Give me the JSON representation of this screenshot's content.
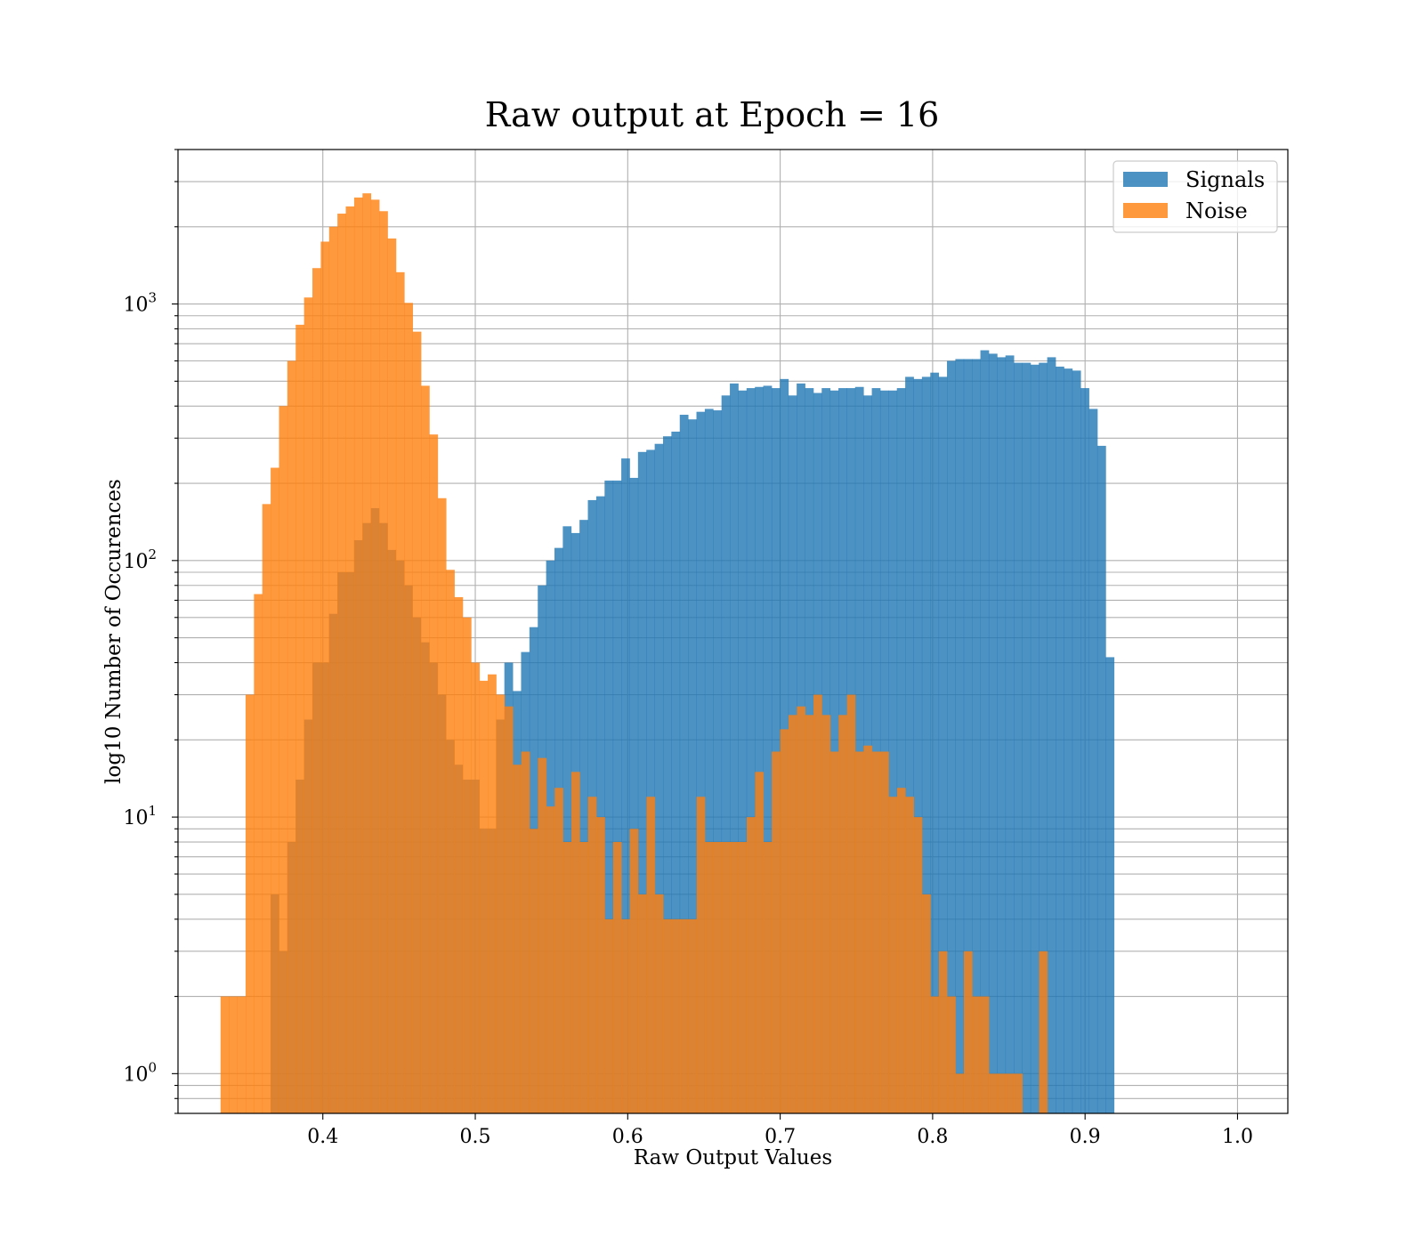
{
  "chart_data": {
    "type": "bar",
    "title": "Raw output at Epoch = 16",
    "xlabel": "Raw Output Values",
    "ylabel": "log10 Number of Occurences",
    "yscale": "log",
    "xlim": [
      0.305,
      1.033
    ],
    "ylim": [
      0.7,
      4000
    ],
    "xticks": [
      0.4,
      0.5,
      0.6,
      0.7,
      0.8,
      0.9,
      1.0
    ],
    "xtick_labels": [
      "0.4",
      "0.5",
      "0.6",
      "0.7",
      "0.8",
      "0.9",
      "1.0"
    ],
    "yticks": [
      1,
      10,
      100,
      1000
    ],
    "ytick_labels": [
      {
        "base": "10",
        "exp": "0"
      },
      {
        "base": "10",
        "exp": "1"
      },
      {
        "base": "10",
        "exp": "2"
      },
      {
        "base": "10",
        "exp": "3"
      }
    ],
    "grid": true,
    "legend_position": "upper-right",
    "series": [
      {
        "name": "Signals",
        "color": "#1f77b4",
        "x_start": 0.3657,
        "bin_width": 0.005478,
        "values": [
          5,
          3,
          8,
          14,
          24,
          40,
          40,
          62,
          90,
          90,
          120,
          140,
          160,
          140,
          110,
          100,
          80,
          60,
          48,
          40,
          30,
          20,
          16,
          14,
          14,
          9,
          9,
          24,
          40,
          31,
          44,
          55,
          80,
          100,
          112,
          136,
          128,
          144,
          172,
          178,
          205,
          205,
          250,
          210,
          265,
          270,
          285,
          305,
          318,
          370,
          355,
          380,
          390,
          385,
          440,
          490,
          460,
          470,
          475,
          480,
          470,
          510,
          440,
          490,
          470,
          450,
          470,
          460,
          470,
          470,
          475,
          440,
          470,
          460,
          460,
          470,
          520,
          510,
          520,
          540,
          520,
          600,
          610,
          610,
          610,
          660,
          640,
          620,
          630,
          590,
          590,
          580,
          590,
          620,
          570,
          560,
          550,
          470,
          390,
          280,
          42
        ]
      },
      {
        "name": "Noise",
        "color": "#ff7f0e",
        "x_start": 0.3329,
        "bin_width": 0.005478,
        "values": [
          2,
          2,
          2,
          30,
          74,
          166,
          230,
          400,
          600,
          830,
          1060,
          1380,
          1750,
          2000,
          2250,
          2400,
          2600,
          2700,
          2550,
          2300,
          1800,
          1330,
          1010,
          780,
          480,
          310,
          175,
          92,
          72,
          60,
          40,
          34,
          36,
          30,
          27,
          16,
          18,
          9,
          17,
          11,
          13,
          8,
          15,
          8,
          12,
          10,
          4,
          8,
          4,
          9,
          5,
          12,
          5,
          4,
          4,
          4,
          4,
          12,
          8,
          8,
          8,
          8,
          8,
          10,
          15,
          8,
          18,
          22,
          25,
          27,
          25,
          30,
          25,
          18,
          25,
          30,
          18,
          19,
          18,
          18,
          12,
          13,
          12,
          10,
          5,
          2,
          3,
          2,
          1,
          3,
          2,
          2,
          1,
          1,
          1,
          1,
          0,
          0,
          3
        ]
      }
    ]
  }
}
